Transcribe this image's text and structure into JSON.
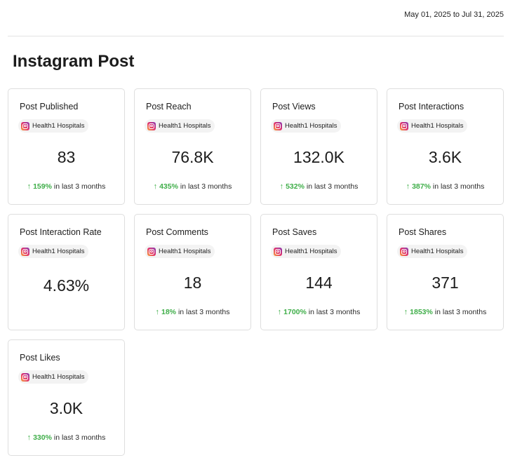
{
  "header": {
    "date_range": "May 01, 2025 to Jul 31, 2025"
  },
  "page_title": "Instagram Post",
  "colors": {
    "trend_up": "#3fae49",
    "card_border": "#dedede"
  },
  "cards": [
    {
      "title": "Post Published",
      "account": "Health1 Hospitals",
      "value": "83",
      "change": "159%",
      "period": "in last 3 months"
    },
    {
      "title": "Post Reach",
      "account": "Health1 Hospitals",
      "value": "76.8K",
      "change": "435%",
      "period": "in last 3 months"
    },
    {
      "title": "Post Views",
      "account": "Health1 Hospitals",
      "value": "132.0K",
      "change": "532%",
      "period": "in last 3 months"
    },
    {
      "title": "Post Interactions",
      "account": "Health1 Hospitals",
      "value": "3.6K",
      "change": "387%",
      "period": "in last 3 months"
    },
    {
      "title": "Post Interaction Rate",
      "account": "Health1 Hospitals",
      "value": "4.63%",
      "change": "",
      "period": ""
    },
    {
      "title": "Post Comments",
      "account": "Health1 Hospitals",
      "value": "18",
      "change": "18%",
      "period": "in last 3 months"
    },
    {
      "title": "Post Saves",
      "account": "Health1 Hospitals",
      "value": "144",
      "change": "1700%",
      "period": "in last 3 months"
    },
    {
      "title": "Post Shares",
      "account": "Health1 Hospitals",
      "value": "371",
      "change": "1853%",
      "period": "in last 3 months"
    },
    {
      "title": "Post Likes",
      "account": "Health1 Hospitals",
      "value": "3.0K",
      "change": "330%",
      "period": "in last 3 months"
    }
  ],
  "icons": {
    "account": "instagram-icon",
    "trend": "arrow-up-icon"
  }
}
